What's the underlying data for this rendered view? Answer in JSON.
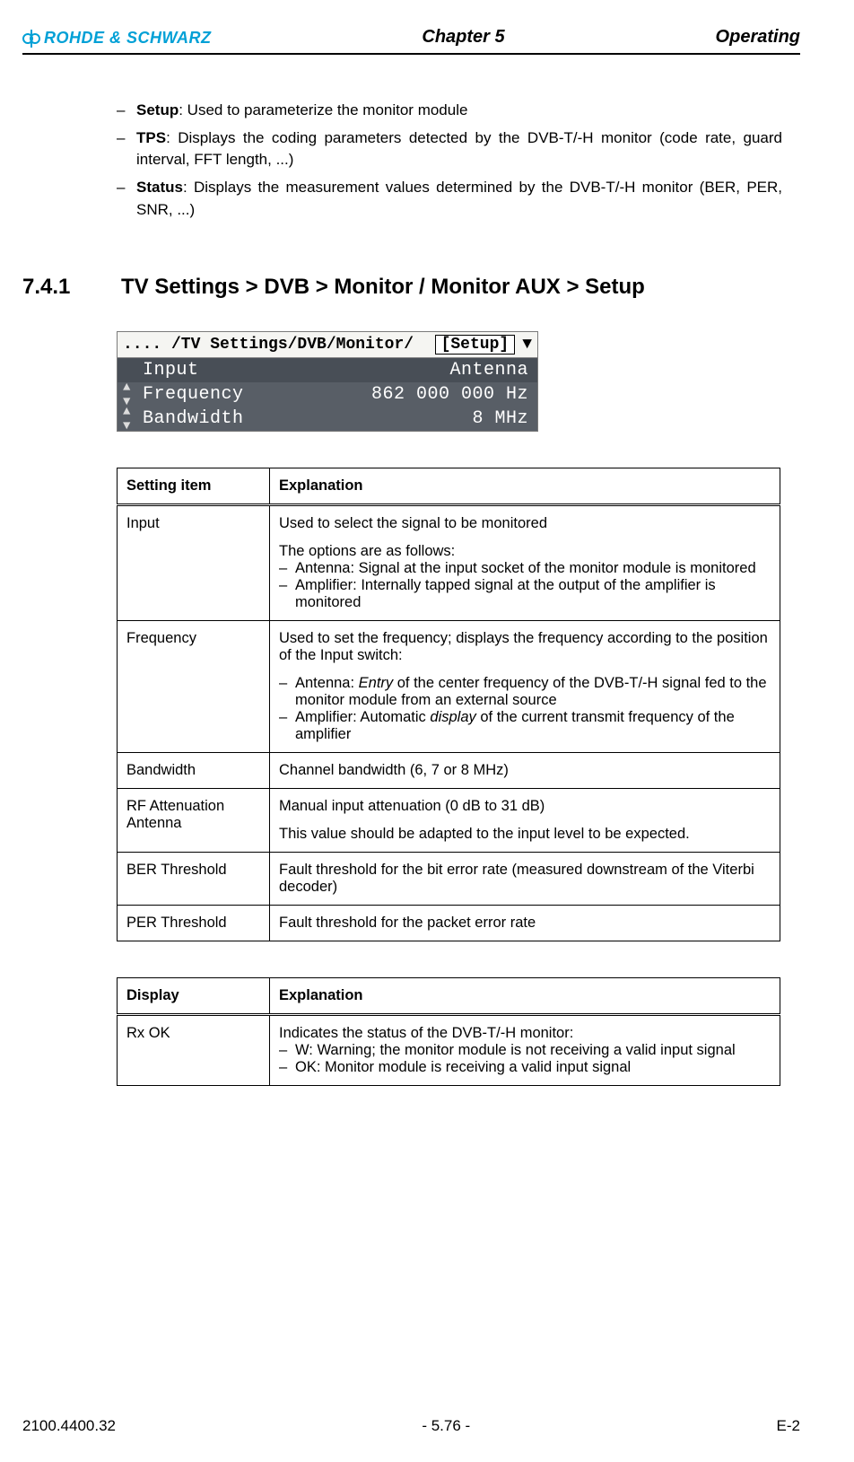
{
  "header": {
    "brand": "ROHDE & SCHWARZ",
    "chapter": "Chapter 5",
    "section": "Operating"
  },
  "intro_bullets": [
    {
      "term": "Setup",
      "text": ": Used to parameterize the monitor module"
    },
    {
      "term": "TPS",
      "text": ": Displays the coding parameters detected by the DVB-T/-H monitor (code rate, guard interval, FFT length, ...)"
    },
    {
      "term": "Status",
      "text": ": Displays the measurement values determined by the DVB-T/-H monitor (BER, PER, SNR, ...)"
    }
  ],
  "section_number": "7.4.1",
  "section_title": "TV Settings > DVB > Monitor / Monitor AUX > Setup",
  "lcd": {
    "breadcrumb": ".... /TV Settings/DVB/Monitor/",
    "tab": "[Setup]",
    "rows": [
      {
        "label": "Input",
        "value": "Antenna",
        "selected": true,
        "arrows": false
      },
      {
        "label": "Frequency",
        "value": "862 000 000 Hz",
        "selected": false,
        "arrows": true
      },
      {
        "label": "Bandwidth",
        "value": "8 MHz",
        "selected": false,
        "arrows": true
      }
    ],
    "colors": {
      "body_bg": "#585e66",
      "selected_bg": "#484e56",
      "text": "#ffffff",
      "frame_bg1": "#fdfdfd",
      "frame_bg2": "#eeeeee"
    }
  },
  "table1": {
    "head_left": "Setting item",
    "head_right": "Explanation",
    "rows": [
      {
        "name": "Input",
        "intro": "Used to select the signal to be monitored",
        "sub_intro": "The options are as follows:",
        "bullets": [
          "Antenna: Signal at the input socket of the monitor module is monitored",
          "Amplifier: Internally tapped signal at the output of the amplifier is monitored"
        ]
      },
      {
        "name": "Frequency",
        "intro": "Used to set the frequency; displays the frequency according to the position of the Input switch:",
        "bullets_rich": [
          {
            "prefix": "Antenna: ",
            "italic": "Entry",
            "rest": " of the center frequency of the DVB-T/-H signal fed to the monitor module from an external source"
          },
          {
            "prefix": "Amplifier: Automatic ",
            "italic": "display",
            "rest": " of the current transmit frequency of the amplifier"
          }
        ]
      },
      {
        "name": "Bandwidth",
        "plain": "Channel bandwidth (6, 7 or 8 MHz)"
      },
      {
        "name": "RF Attenuation Antenna",
        "intro": "Manual input attenuation (0 dB to 31 dB)",
        "extra": "This value should be adapted to the input level to be expected."
      },
      {
        "name": "BER Threshold",
        "plain": "Fault threshold for the bit error rate (measured downstream of the Viterbi decoder)"
      },
      {
        "name": "PER Threshold",
        "plain": "Fault threshold for the packet error rate"
      }
    ]
  },
  "table2": {
    "head_left": "Display",
    "head_right": "Explanation",
    "rows": [
      {
        "name": "Rx OK",
        "intro": "Indicates the status of the DVB-T/-H monitor:",
        "bullets": [
          "W: Warning; the monitor module is not receiving a valid input signal",
          "OK: Monitor module is receiving a valid input signal"
        ]
      }
    ]
  },
  "footer": {
    "left": "2100.4400.32",
    "center": "- 5.76 -",
    "right": "E-2"
  }
}
